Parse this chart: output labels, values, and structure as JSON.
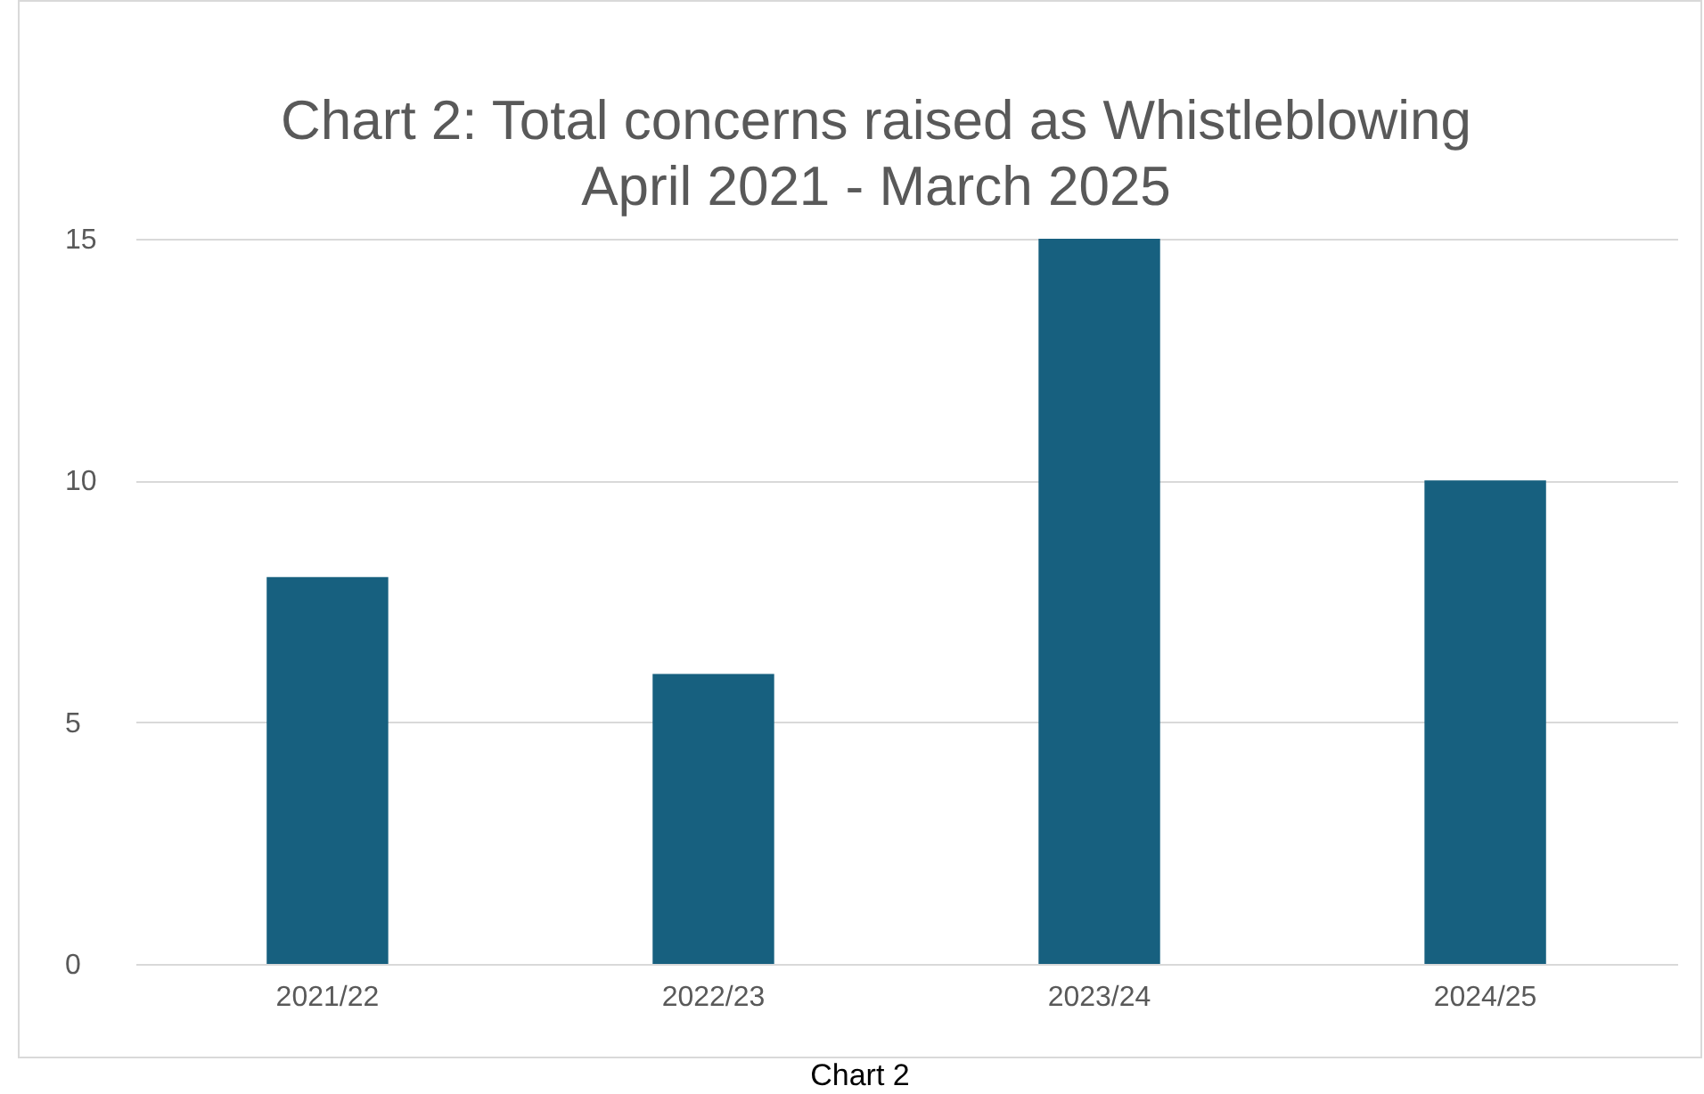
{
  "chart_data": {
    "type": "bar",
    "title": "Chart 2: Total concerns raised as Whistleblowing\nApril 2021 - March 2025",
    "categories": [
      "2021/22",
      "2022/23",
      "2023/24",
      "2024/25"
    ],
    "values": [
      8,
      6,
      15,
      10
    ],
    "color": "#17607f",
    "ylim": [
      0,
      15
    ],
    "yticks": [
      0,
      5,
      10,
      15
    ],
    "grid": "y",
    "annotations": [
      "Chart 2"
    ]
  }
}
